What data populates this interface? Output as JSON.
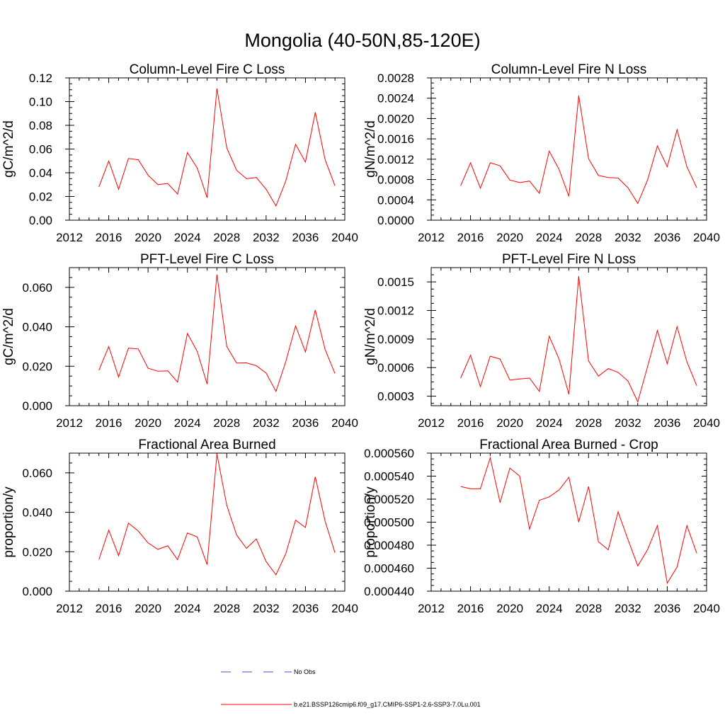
{
  "figure_title": "Mongolia (40-50N,85-120E)",
  "colors": {
    "model": "#ff0000",
    "obs": "#4d4dcc",
    "axis": "#000000"
  },
  "legend": [
    {
      "label": "No Obs",
      "style": "dashed",
      "color": "#4d4dcc"
    },
    {
      "label": "b.e21.BSSP126cmip6.f09_g17.CMIP6-SSP1-2.6-SSP3-7.0Lu.001",
      "style": "solid",
      "color": "#ff0000"
    }
  ],
  "chart_data": [
    {
      "type": "line",
      "title": "Column-Level Fire C Loss",
      "ylabel": "gC/m^2/d",
      "xlim": [
        2012,
        2040
      ],
      "ylim": [
        0,
        0.12
      ],
      "xticks": [
        "2012",
        "2016",
        "2020",
        "2024",
        "2028",
        "2032",
        "2036",
        "2040"
      ],
      "yticks": [
        "0.00",
        "0.02",
        "0.04",
        "0.06",
        "0.08",
        "0.10",
        "0.12"
      ],
      "ytick_values": [
        0,
        0.02,
        0.04,
        0.06,
        0.08,
        0.1,
        0.12
      ],
      "x": [
        2015,
        2016,
        2017,
        2018,
        2019,
        2020,
        2021,
        2022,
        2023,
        2024,
        2025,
        2026,
        2027,
        2028,
        2029,
        2030,
        2031,
        2032,
        2033,
        2034,
        2035,
        2036,
        2037,
        2038,
        2039
      ],
      "series": [
        {
          "values": [
            0.028,
            0.05,
            0.026,
            0.052,
            0.051,
            0.038,
            0.03,
            0.031,
            0.022,
            0.057,
            0.044,
            0.019,
            0.111,
            0.061,
            0.042,
            0.035,
            0.036,
            0.026,
            0.012,
            0.033,
            0.064,
            0.049,
            0.091,
            0.051,
            0.029
          ]
        }
      ]
    },
    {
      "type": "line",
      "title": "Column-Level Fire N Loss",
      "ylabel": "gN/m^2/d",
      "xlim": [
        2012,
        2040
      ],
      "ylim": [
        0,
        0.0028
      ],
      "xticks": [
        "2012",
        "2016",
        "2020",
        "2024",
        "2028",
        "2032",
        "2036",
        "2040"
      ],
      "yticks": [
        "0.0000",
        "0.0004",
        "0.0008",
        "0.0012",
        "0.0016",
        "0.0020",
        "0.0024",
        "0.0028"
      ],
      "ytick_values": [
        0,
        0.0004,
        0.0008,
        0.0012,
        0.0016,
        0.002,
        0.0024,
        0.0028
      ],
      "x": [
        2015,
        2016,
        2017,
        2018,
        2019,
        2020,
        2021,
        2022,
        2023,
        2024,
        2025,
        2026,
        2027,
        2028,
        2029,
        2030,
        2031,
        2032,
        2033,
        2034,
        2035,
        2036,
        2037,
        2038,
        2039
      ],
      "series": [
        {
          "values": [
            0.00068,
            0.00113,
            0.00063,
            0.00113,
            0.00107,
            0.00079,
            0.00074,
            0.00077,
            0.00053,
            0.00136,
            0.001,
            0.00047,
            0.00245,
            0.00121,
            0.00088,
            0.00084,
            0.00083,
            0.00064,
            0.00033,
            0.00079,
            0.00146,
            0.00105,
            0.00178,
            0.00105,
            0.00064
          ]
        }
      ]
    },
    {
      "type": "line",
      "title": "PFT-Level Fire C Loss",
      "ylabel": "gC/m^2/d",
      "xlim": [
        2012,
        2040
      ],
      "ylim": [
        0,
        0.07
      ],
      "xticks": [
        "2012",
        "2016",
        "2020",
        "2024",
        "2028",
        "2032",
        "2036",
        "2040"
      ],
      "yticks": [
        "0.000",
        "0.020",
        "0.040",
        "0.060"
      ],
      "ytick_values": [
        0,
        0.02,
        0.04,
        0.06
      ],
      "x": [
        2015,
        2016,
        2017,
        2018,
        2019,
        2020,
        2021,
        2022,
        2023,
        2024,
        2025,
        2026,
        2027,
        2028,
        2029,
        2030,
        2031,
        2032,
        2033,
        2034,
        2035,
        2036,
        2037,
        2038,
        2039
      ],
      "series": [
        {
          "values": [
            0.018,
            0.03,
            0.0145,
            0.0292,
            0.0288,
            0.019,
            0.0175,
            0.0177,
            0.012,
            0.0366,
            0.0275,
            0.011,
            0.0665,
            0.03,
            0.0216,
            0.0217,
            0.0203,
            0.0165,
            0.0072,
            0.0223,
            0.0405,
            0.0272,
            0.0485,
            0.0285,
            0.0163
          ]
        }
      ]
    },
    {
      "type": "line",
      "title": "PFT-Level Fire N Loss",
      "ylabel": "gN/m^2/d",
      "xlim": [
        2012,
        2040
      ],
      "ylim": [
        0.0002,
        0.00165
      ],
      "xticks": [
        "2012",
        "2016",
        "2020",
        "2024",
        "2028",
        "2032",
        "2036",
        "2040"
      ],
      "yticks": [
        "0.0003",
        "0.0006",
        "0.0009",
        "0.0012",
        "0.0015"
      ],
      "ytick_values": [
        0.0003,
        0.0006,
        0.0009,
        0.0012,
        0.0015
      ],
      "x": [
        2015,
        2016,
        2017,
        2018,
        2019,
        2020,
        2021,
        2022,
        2023,
        2024,
        2025,
        2026,
        2027,
        2028,
        2029,
        2030,
        2031,
        2032,
        2033,
        2034,
        2035,
        2036,
        2037,
        2038,
        2039
      ],
      "series": [
        {
          "values": [
            0.00049,
            0.00073,
            0.0004,
            0.00072,
            0.00069,
            0.00047,
            0.00048,
            0.00049,
            0.00035,
            0.00093,
            0.00069,
            0.00032,
            0.00156,
            0.00067,
            0.00051,
            0.00059,
            0.00055,
            0.00046,
            0.00024,
            0.00061,
            0.00099,
            0.00064,
            0.00103,
            0.00066,
            0.00041
          ]
        }
      ]
    },
    {
      "type": "line",
      "title": "Fractional Area Burned",
      "ylabel": "proportion/y",
      "xlim": [
        2012,
        2040
      ],
      "ylim": [
        0,
        0.07
      ],
      "xticks": [
        "2012",
        "2016",
        "2020",
        "2024",
        "2028",
        "2032",
        "2036",
        "2040"
      ],
      "yticks": [
        "0.000",
        "0.020",
        "0.040",
        "0.060"
      ],
      "ytick_values": [
        0,
        0.02,
        0.04,
        0.06
      ],
      "x": [
        2015,
        2016,
        2017,
        2018,
        2019,
        2020,
        2021,
        2022,
        2023,
        2024,
        2025,
        2026,
        2027,
        2028,
        2029,
        2030,
        2031,
        2032,
        2033,
        2034,
        2035,
        2036,
        2037,
        2038,
        2039
      ],
      "series": [
        {
          "values": [
            0.016,
            0.031,
            0.018,
            0.0345,
            0.0305,
            0.0245,
            0.0212,
            0.023,
            0.016,
            0.0295,
            0.0275,
            0.0135,
            0.0695,
            0.0435,
            0.0285,
            0.0217,
            0.0265,
            0.015,
            0.0083,
            0.019,
            0.036,
            0.0323,
            0.058,
            0.0355,
            0.0195
          ]
        }
      ]
    },
    {
      "type": "line",
      "title": "Fractional Area Burned - Crop",
      "ylabel": "proportion/y",
      "xlim": [
        2012,
        2040
      ],
      "ylim": [
        0.00044,
        0.00056
      ],
      "xticks": [
        "2012",
        "2016",
        "2020",
        "2024",
        "2028",
        "2032",
        "2036",
        "2040"
      ],
      "yticks": [
        "0.000440",
        "0.000460",
        "0.000480",
        "0.000500",
        "0.000520",
        "0.000540",
        "0.000560"
      ],
      "ytick_values": [
        0.00044,
        0.00046,
        0.00048,
        0.0005,
        0.00052,
        0.00054,
        0.00056
      ],
      "x": [
        2015,
        2016,
        2017,
        2018,
        2019,
        2020,
        2021,
        2022,
        2023,
        2024,
        2025,
        2026,
        2027,
        2028,
        2029,
        2030,
        2031,
        2032,
        2033,
        2034,
        2035,
        2036,
        2037,
        2038,
        2039
      ],
      "series": [
        {
          "values": [
            0.000531,
            0.000529,
            0.000529,
            0.000556,
            0.000517,
            0.000547,
            0.00054,
            0.000494,
            0.000519,
            0.000522,
            0.000528,
            0.000539,
            0.0005,
            0.000531,
            0.000483,
            0.000476,
            0.000509,
            0.000485,
            0.000462,
            0.000476,
            0.000497,
            0.000447,
            0.000461,
            0.000497,
            0.000473
          ]
        }
      ]
    }
  ]
}
